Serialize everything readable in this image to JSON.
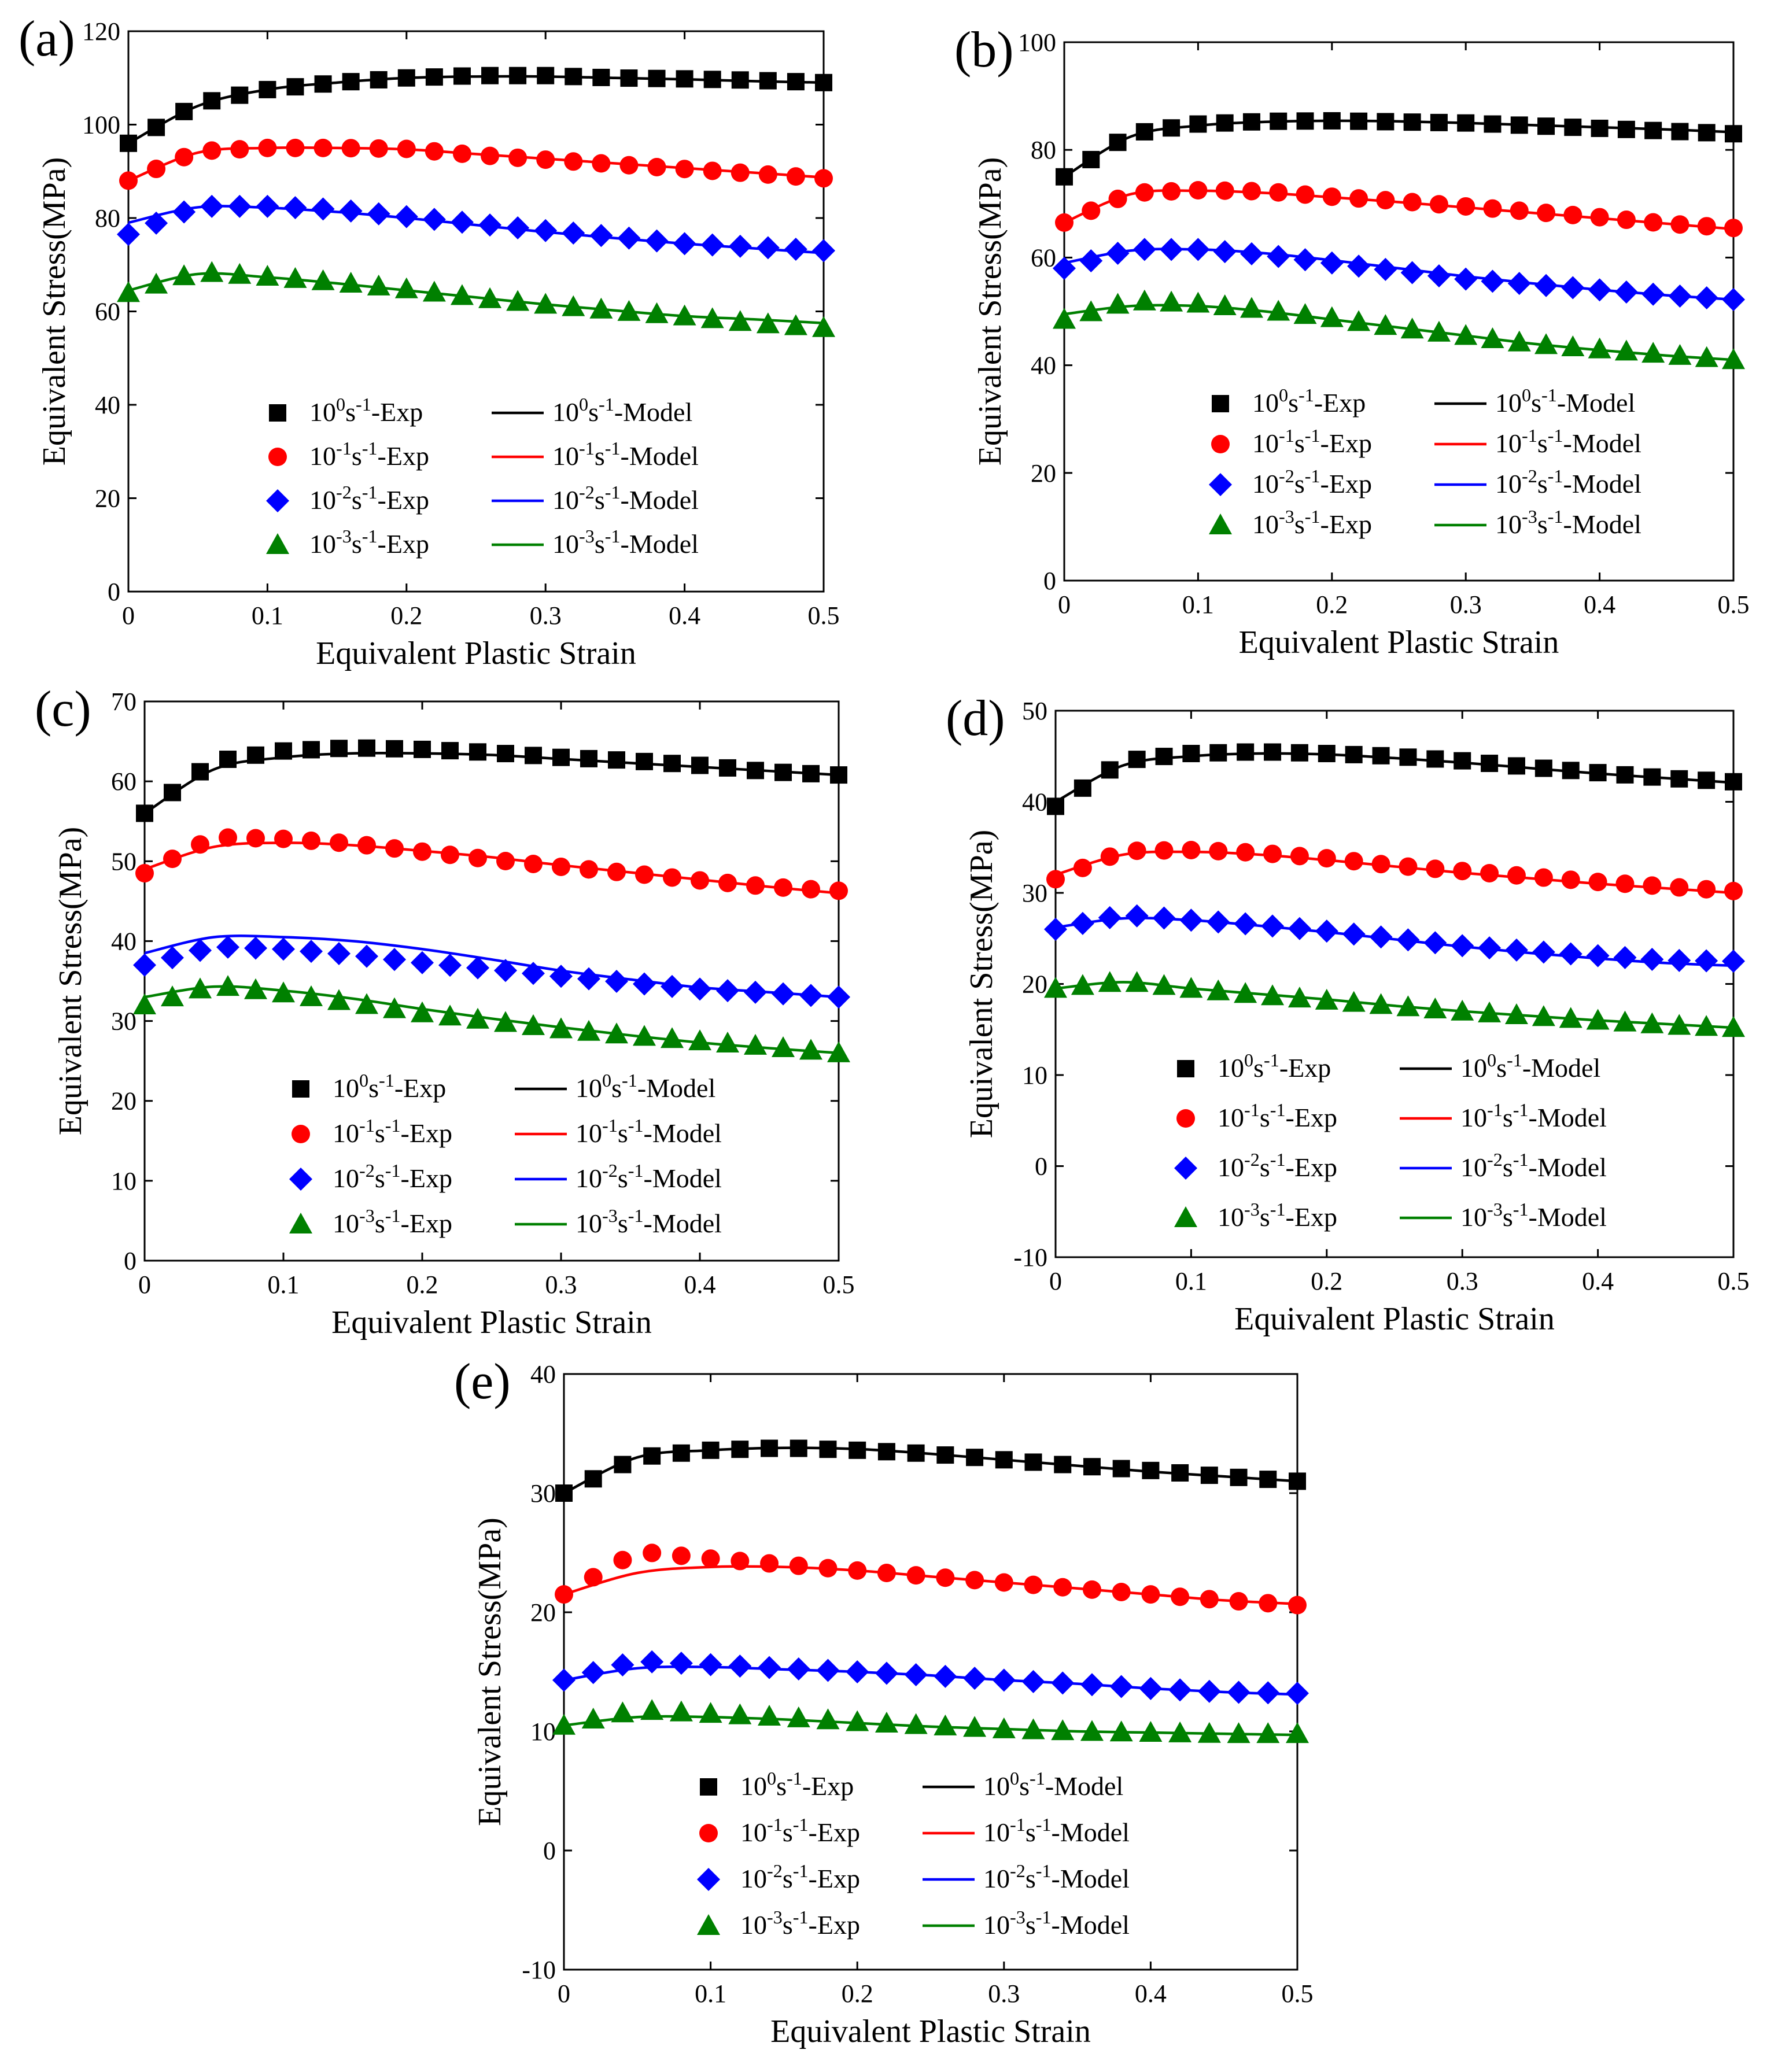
{
  "figure": {
    "description_hidden": false
  },
  "legend": {
    "exp": [
      "10^0s^-1-Exp",
      "10^-1s^-1-Exp",
      "10^-2s^-1-Exp",
      "10^-3s^-1-Exp"
    ],
    "model": [
      "10^0s^-1-Model",
      "10^-1s^-1-Model",
      "10^-2s^-1-Model",
      "10^-3s^-1-Model"
    ]
  },
  "colors": [
    "#000000",
    "#ff0000",
    "#0000ff",
    "#008000"
  ],
  "markers": [
    "square",
    "circle",
    "diamond",
    "triangle"
  ],
  "chart_data": [
    {
      "type": "line",
      "panel": "(a)",
      "xlabel": "Equivalent Plastic Strain",
      "ylabel": "Equivalent Stress(MPa)",
      "xlim": [
        0,
        0.5
      ],
      "ylim": [
        0,
        120
      ],
      "xticks": [
        0,
        0.1,
        0.2,
        0.3,
        0.4,
        0.5
      ],
      "yticks": [
        0,
        20,
        40,
        60,
        80,
        100,
        120
      ],
      "x": [
        0,
        0.05,
        0.1,
        0.15,
        0.2,
        0.25,
        0.3,
        0.35,
        0.4,
        0.45,
        0.5
      ],
      "series": [
        {
          "name": "10^0s^-1",
          "exp": [
            96,
            104.5,
            107.5,
            109,
            110,
            110.5,
            110.5,
            110,
            109.8,
            109.5,
            109
          ],
          "model": [
            96,
            104,
            107.5,
            109,
            110,
            110.3,
            110.3,
            110,
            109.7,
            109.3,
            109
          ]
        },
        {
          "name": "10^-1s^-1",
          "exp": [
            88,
            94.3,
            95,
            95,
            94.8,
            93.5,
            92.5,
            91.5,
            90.5,
            89.5,
            88.5
          ],
          "model": [
            88,
            94,
            95,
            95,
            94.7,
            93.7,
            92.7,
            91.7,
            90.7,
            89.7,
            88.7
          ]
        },
        {
          "name": "10^-2s^-1",
          "exp": [
            76.5,
            82.5,
            82.5,
            81.8,
            80.3,
            78.8,
            77.3,
            76,
            74.5,
            73.8,
            73
          ],
          "model": [
            79,
            82.3,
            82.2,
            81.3,
            80,
            78.5,
            77,
            75.7,
            74.5,
            73.5,
            72.5
          ]
        },
        {
          "name": "10^-3s^-1",
          "exp": [
            64,
            68.5,
            67.5,
            66.3,
            64.8,
            63,
            61.5,
            60.2,
            59,
            57.5,
            56.5
          ],
          "model": [
            64.5,
            68,
            67.3,
            66,
            64.5,
            63,
            61.5,
            60.2,
            59,
            58.3,
            57.5
          ]
        }
      ]
    },
    {
      "type": "line",
      "panel": "(b)",
      "xlabel": "Equivalent Plastic Strain",
      "ylabel": "Equivalent Stress(MPa)",
      "xlim": [
        0,
        0.5
      ],
      "ylim": [
        0,
        100
      ],
      "xticks": [
        0,
        0.1,
        0.2,
        0.3,
        0.4,
        0.5
      ],
      "yticks": [
        0,
        20,
        40,
        60,
        80,
        100
      ],
      "x": [
        0,
        0.05,
        0.1,
        0.15,
        0.2,
        0.25,
        0.3,
        0.35,
        0.4,
        0.45,
        0.5
      ],
      "series": [
        {
          "name": "10^0s^-1",
          "exp": [
            75,
            83,
            84.8,
            85.3,
            85.4,
            85.2,
            85,
            84.5,
            84,
            83.5,
            83
          ],
          "model": [
            75,
            82.5,
            84.5,
            85.2,
            85.4,
            85.3,
            85,
            84.6,
            84.2,
            83.8,
            83.3
          ]
        },
        {
          "name": "10^-1s^-1",
          "exp": [
            66.5,
            72,
            72.5,
            72.3,
            71.3,
            70.5,
            69.5,
            68.5,
            67.5,
            66.3,
            65.5
          ],
          "model": [
            66.5,
            71.8,
            72.4,
            72,
            71.2,
            70.3,
            69.3,
            68.3,
            67.3,
            66.3,
            65.3
          ]
        },
        {
          "name": "10^-2s^-1",
          "exp": [
            58,
            61.5,
            61.5,
            60.5,
            59,
            57.5,
            56,
            55,
            54,
            53,
            52.2
          ],
          "model": [
            59,
            61.3,
            61.5,
            60.8,
            59.5,
            58,
            56.5,
            55.2,
            54,
            53,
            52.2
          ]
        },
        {
          "name": "10^-3s^-1",
          "exp": [
            48.5,
            52,
            51.5,
            50.3,
            48.8,
            47,
            45.5,
            44,
            43,
            42,
            41
          ],
          "model": [
            49.5,
            51,
            51,
            50,
            48.5,
            47,
            45.5,
            44,
            42.8,
            41.8,
            41
          ]
        }
      ]
    },
    {
      "type": "line",
      "panel": "(c)",
      "xlabel": "Equivalent Plastic Strain",
      "ylabel": "Equivalent Stress(MPa)",
      "xlim": [
        0,
        0.5
      ],
      "ylim": [
        0,
        70
      ],
      "xticks": [
        0,
        0.1,
        0.2,
        0.3,
        0.4,
        0.5
      ],
      "yticks": [
        0,
        10,
        20,
        30,
        40,
        50,
        60,
        70
      ],
      "x": [
        0,
        0.05,
        0.1,
        0.15,
        0.2,
        0.25,
        0.3,
        0.35,
        0.4,
        0.45,
        0.5
      ],
      "series": [
        {
          "name": "10^0s^-1",
          "exp": [
            56,
            62.5,
            63.8,
            64.2,
            64,
            63.6,
            63,
            62.6,
            62,
            61.2,
            60.8
          ],
          "model": [
            56,
            61.5,
            63,
            63.5,
            63.5,
            63.3,
            62.8,
            62.3,
            61.8,
            61.3,
            60.8
          ]
        },
        {
          "name": "10^-1s^-1",
          "exp": [
            48.5,
            53,
            52.8,
            52.2,
            51.2,
            50.2,
            49.3,
            48.5,
            47.6,
            46.8,
            46.3
          ],
          "model": [
            49,
            51.8,
            52.3,
            52,
            51.3,
            50.5,
            49.5,
            48.6,
            47.7,
            46.8,
            46
          ]
        },
        {
          "name": "10^-2s^-1",
          "exp": [
            37,
            39.3,
            39,
            38.3,
            37.3,
            36.5,
            35.6,
            34.8,
            34,
            33.5,
            33
          ],
          "model": [
            38.5,
            40.5,
            40.5,
            40,
            39,
            37.7,
            36.3,
            35.2,
            34.2,
            33.6,
            33
          ]
        },
        {
          "name": "10^-3s^-1",
          "exp": [
            32,
            34.5,
            33.5,
            32.3,
            31,
            30,
            29,
            28.2,
            27.5,
            26.8,
            26
          ],
          "model": [
            33,
            34.3,
            33.8,
            32.8,
            31.5,
            30.3,
            29.2,
            28.2,
            27.3,
            26.6,
            26
          ]
        }
      ]
    },
    {
      "type": "line",
      "panel": "(d)",
      "xlabel": "Equivalent Plastic Strain",
      "ylabel": "Equivalent Stress(MPa)",
      "xlim": [
        0,
        0.5
      ],
      "ylim": [
        -10,
        50
      ],
      "xticks": [
        0,
        0.1,
        0.2,
        0.3,
        0.4,
        0.5
      ],
      "yticks": [
        -10,
        0,
        10,
        20,
        30,
        40,
        50
      ],
      "x": [
        0,
        0.05,
        0.1,
        0.15,
        0.2,
        0.25,
        0.3,
        0.35,
        0.4,
        0.45,
        0.5
      ],
      "series": [
        {
          "name": "10^0s^-1",
          "exp": [
            39.5,
            44.5,
            45.3,
            45.5,
            45.3,
            45,
            44.5,
            43.8,
            43.2,
            42.6,
            42.2
          ],
          "model": [
            40,
            44,
            45,
            45.3,
            45.2,
            44.8,
            44.3,
            43.7,
            43.1,
            42.6,
            42.1
          ]
        },
        {
          "name": "10^-1s^-1",
          "exp": [
            31.5,
            34.6,
            34.7,
            34.4,
            33.8,
            33,
            32.4,
            31.8,
            31.2,
            30.7,
            30.2
          ],
          "model": [
            32,
            34.2,
            34.5,
            34.2,
            33.6,
            32.9,
            32.2,
            31.6,
            31,
            30.5,
            30
          ]
        },
        {
          "name": "10^-2s^-1",
          "exp": [
            26,
            27.6,
            27,
            26.5,
            25.8,
            25,
            24.2,
            23.6,
            23.1,
            22.6,
            22.5
          ],
          "model": [
            26.2,
            27.2,
            27,
            26.4,
            25.7,
            24.9,
            24.1,
            23.4,
            22.8,
            22.3,
            22
          ]
        },
        {
          "name": "10^-3s^-1",
          "exp": [
            19.5,
            20.3,
            19.5,
            18.8,
            18.2,
            17.6,
            17,
            16.5,
            16,
            15.5,
            15.2
          ],
          "model": [
            19.5,
            20.2,
            19.5,
            18.9,
            18.3,
            17.6,
            17,
            16.5,
            16,
            15.6,
            15.2
          ]
        }
      ]
    },
    {
      "type": "line",
      "panel": "(e)",
      "xlabel": "Equivalent Plastic Strain",
      "ylabel": "Equivalent Stress(MPa)",
      "xlim": [
        0,
        0.5
      ],
      "ylim": [
        -10,
        40
      ],
      "xticks": [
        0,
        0.1,
        0.2,
        0.3,
        0.4,
        0.5
      ],
      "yticks": [
        -10,
        0,
        10,
        20,
        30,
        40
      ],
      "x": [
        0,
        0.05,
        0.1,
        0.15,
        0.2,
        0.25,
        0.3,
        0.35,
        0.4,
        0.45,
        0.5
      ],
      "series": [
        {
          "name": "10^0s^-1",
          "exp": [
            30,
            33,
            33.6,
            33.8,
            33.6,
            33.3,
            32.8,
            32.3,
            31.9,
            31.4,
            31
          ],
          "model": [
            30,
            33,
            33.6,
            33.8,
            33.7,
            33.3,
            32.8,
            32.3,
            31.8,
            31.4,
            31
          ]
        },
        {
          "name": "10^-1s^-1",
          "exp": [
            21.5,
            25.1,
            24.5,
            24,
            23.5,
            23,
            22.5,
            22,
            21.5,
            21,
            20.6
          ],
          "model": [
            21.5,
            23.3,
            23.8,
            23.8,
            23.5,
            23,
            22.5,
            22,
            21.5,
            21,
            20.7
          ]
        },
        {
          "name": "10^-2s^-1",
          "exp": [
            14.3,
            15.9,
            15.6,
            15.3,
            15,
            14.7,
            14.3,
            14,
            13.6,
            13.3,
            13.2
          ],
          "model": [
            14.3,
            15.3,
            15.4,
            15.2,
            15,
            14.7,
            14.3,
            14,
            13.6,
            13.3,
            13.1
          ]
        },
        {
          "name": "10^-3s^-1",
          "exp": [
            10.5,
            11.8,
            11.5,
            11.2,
            10.8,
            10.5,
            10.2,
            10,
            9.9,
            9.8,
            9.8
          ],
          "model": [
            10.5,
            11.2,
            11.2,
            11,
            10.7,
            10.4,
            10.2,
            10,
            9.9,
            9.8,
            9.7
          ]
        }
      ]
    }
  ]
}
